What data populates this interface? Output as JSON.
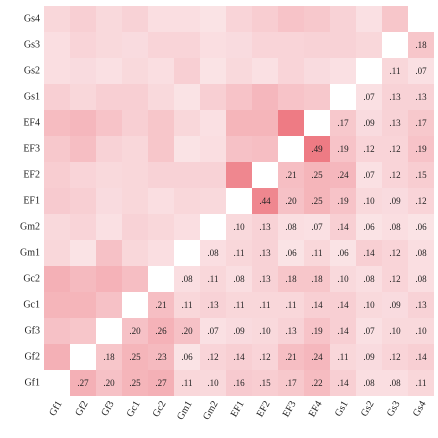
{
  "chart_data": {
    "type": "heatmap",
    "categories": [
      "Gf1",
      "Gf2",
      "Gf3",
      "Gc1",
      "Gc2",
      "Gm1",
      "Gm2",
      "EF1",
      "EF2",
      "EF3",
      "EF4",
      "Gs1",
      "Gs2",
      "Gs3",
      "Gs4"
    ],
    "color": "#ee7b84",
    "values": [
      [
        null,
        0.27,
        0.2,
        0.25,
        0.27,
        0.11,
        0.1,
        0.16,
        0.15,
        0.17,
        0.22,
        0.14,
        0.08,
        0.08,
        0.11
      ],
      [
        null,
        null,
        0.18,
        0.25,
        0.23,
        0.06,
        0.12,
        0.14,
        0.12,
        0.21,
        0.24,
        0.11,
        0.09,
        0.12,
        0.14
      ],
      [
        null,
        null,
        null,
        0.2,
        0.26,
        0.2,
        0.07,
        0.09,
        0.1,
        0.13,
        0.19,
        0.14,
        0.07,
        0.1,
        0.1
      ],
      [
        null,
        null,
        null,
        null,
        0.21,
        0.11,
        0.13,
        0.11,
        0.11,
        0.11,
        0.14,
        0.14,
        0.1,
        0.09,
        0.13
      ],
      [
        null,
        null,
        null,
        null,
        null,
        0.08,
        0.11,
        0.08,
        0.13,
        0.18,
        0.18,
        0.1,
        0.08,
        0.12,
        0.08
      ],
      [
        null,
        null,
        null,
        null,
        null,
        null,
        0.08,
        0.11,
        0.13,
        0.06,
        0.11,
        0.06,
        0.14,
        0.12,
        0.08
      ],
      [
        null,
        null,
        null,
        null,
        null,
        null,
        null,
        0.1,
        0.13,
        0.08,
        0.07,
        0.14,
        0.06,
        0.08,
        0.06
      ],
      [
        null,
        null,
        null,
        null,
        null,
        null,
        null,
        null,
        0.44,
        0.2,
        0.25,
        0.19,
        0.1,
        0.09,
        0.12
      ],
      [
        null,
        null,
        null,
        null,
        null,
        null,
        null,
        null,
        null,
        0.21,
        0.25,
        0.24,
        0.07,
        0.12,
        0.15
      ],
      [
        null,
        null,
        null,
        null,
        null,
        null,
        null,
        null,
        null,
        null,
        0.49,
        0.19,
        0.12,
        0.12,
        0.19
      ],
      [
        null,
        null,
        null,
        null,
        null,
        null,
        null,
        null,
        null,
        null,
        null,
        0.17,
        0.09,
        0.13,
        0.17
      ],
      [
        null,
        null,
        null,
        null,
        null,
        null,
        null,
        null,
        null,
        null,
        null,
        null,
        0.07,
        0.13,
        0.13
      ],
      [
        null,
        null,
        null,
        null,
        null,
        null,
        null,
        null,
        null,
        null,
        null,
        null,
        null,
        0.11,
        0.07
      ],
      [
        null,
        null,
        null,
        null,
        null,
        null,
        null,
        null,
        null,
        null,
        null,
        null,
        null,
        null,
        0.18
      ],
      [
        null,
        null,
        null,
        null,
        null,
        null,
        null,
        null,
        null,
        null,
        null,
        null,
        null,
        null,
        null
      ]
    ],
    "value_labels": [
      [
        null,
        ".27",
        ".20",
        ".25",
        ".27",
        ".11",
        ".10",
        ".16",
        ".15",
        ".17",
        ".22",
        ".14",
        ".08",
        ".08",
        ".11"
      ],
      [
        null,
        null,
        ".18",
        ".25",
        ".23",
        ".06",
        ".12",
        ".14",
        ".12",
        ".21",
        ".24",
        ".11",
        ".09",
        ".12",
        ".14"
      ],
      [
        null,
        null,
        null,
        ".20",
        ".26",
        ".20",
        ".07",
        ".09",
        ".10",
        ".13",
        ".19",
        ".14",
        ".07",
        ".10",
        ".10"
      ],
      [
        null,
        null,
        null,
        null,
        ".21",
        ".11",
        ".13",
        ".11",
        ".11",
        ".11",
        ".14",
        ".14",
        ".10",
        ".09",
        ".13"
      ],
      [
        null,
        null,
        null,
        null,
        null,
        ".08",
        ".11",
        ".08",
        ".13",
        ".18",
        ".18",
        ".10",
        ".08",
        ".12",
        ".08"
      ],
      [
        null,
        null,
        null,
        null,
        null,
        null,
        ".08",
        ".11",
        ".13",
        ".06",
        ".11",
        ".06",
        ".14",
        ".12",
        ".08"
      ],
      [
        null,
        null,
        null,
        null,
        null,
        null,
        null,
        ".10",
        ".13",
        ".08",
        ".07",
        ".14",
        ".06",
        ".08",
        ".06"
      ],
      [
        null,
        null,
        null,
        null,
        null,
        null,
        null,
        null,
        ".44",
        ".20",
        ".25",
        ".19",
        ".10",
        ".09",
        ".12"
      ],
      [
        null,
        null,
        null,
        null,
        null,
        null,
        null,
        null,
        null,
        ".21",
        ".25",
        ".24",
        ".07",
        ".12",
        ".15"
      ],
      [
        null,
        null,
        null,
        null,
        null,
        null,
        null,
        null,
        null,
        null,
        ".49",
        ".19",
        ".12",
        ".12",
        ".19"
      ],
      [
        null,
        null,
        null,
        null,
        null,
        null,
        null,
        null,
        null,
        null,
        null,
        ".17",
        ".09",
        ".13",
        ".17"
      ],
      [
        null,
        null,
        null,
        null,
        null,
        null,
        null,
        null,
        null,
        null,
        null,
        null,
        ".07",
        ".13",
        ".13"
      ],
      [
        null,
        null,
        null,
        null,
        null,
        null,
        null,
        null,
        null,
        null,
        null,
        null,
        null,
        ".11",
        ".07"
      ],
      [
        null,
        null,
        null,
        null,
        null,
        null,
        null,
        null,
        null,
        null,
        null,
        null,
        null,
        null,
        ".18"
      ],
      [
        null,
        null,
        null,
        null,
        null,
        null,
        null,
        null,
        null,
        null,
        null,
        null,
        null,
        null,
        null
      ]
    ]
  }
}
